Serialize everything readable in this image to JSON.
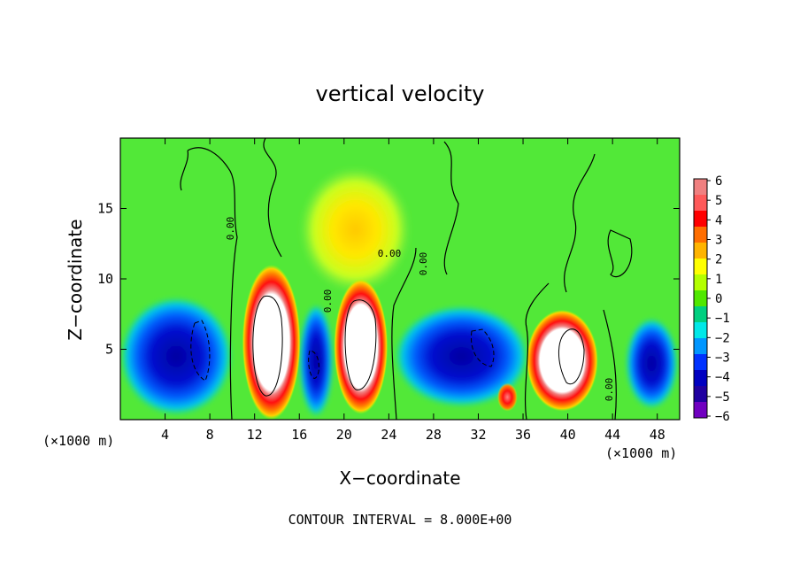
{
  "chart_data": {
    "type": "heatmap",
    "title": "vertical velocity",
    "xlabel": "X−coordinate",
    "ylabel": "Z−coordinate",
    "x_unit_note": "(×1000 m)",
    "y_unit_note": "(×1000 m)",
    "footer": "CONTOUR INTERVAL = 8.000E+00",
    "xlim": [
      0,
      50
    ],
    "ylim": [
      0,
      20
    ],
    "x_ticks": [
      4,
      8,
      12,
      16,
      20,
      24,
      28,
      32,
      36,
      40,
      44,
      48
    ],
    "y_ticks": [
      5,
      10,
      15
    ],
    "colorbar": {
      "ticks": [
        "6",
        "5",
        "4",
        "3",
        "2",
        "1",
        "0",
        "−1",
        "−2",
        "−3",
        "−4",
        "−5",
        "−6"
      ],
      "colors": [
        "#f08080",
        "#ff5a5a",
        "#ff0000",
        "#ff6e00",
        "#ffb400",
        "#ffff00",
        "#b4ff00",
        "#50e800",
        "#00d080",
        "#00e8e8",
        "#0096ff",
        "#0032ff",
        "#0000c0",
        "#2000a0",
        "#7000c0"
      ]
    },
    "contour_labels": [
      "0.00",
      "0.00",
      "0.00",
      "0.00",
      "0.00"
    ],
    "background_color": "#52e838",
    "features": [
      {
        "kind": "updraft",
        "x": 13.5,
        "z": 5.5,
        "rx": 2.6,
        "rz": 5.5
      },
      {
        "kind": "updraft",
        "x": 21.5,
        "z": 5.2,
        "rx": 2.4,
        "rz": 4.8
      },
      {
        "kind": "updraft",
        "x": 39.5,
        "z": 4.2,
        "rx": 3.2,
        "rz": 3.6
      },
      {
        "kind": "updraft",
        "x": 34.6,
        "z": 1.6,
        "rx": 0.9,
        "rz": 1.0
      },
      {
        "kind": "downdraft",
        "x": 5.0,
        "z": 4.5,
        "rx": 5.0,
        "rz": 4.2
      },
      {
        "kind": "downdraft",
        "x": 17.5,
        "z": 4.2,
        "rx": 1.5,
        "rz": 4.0
      },
      {
        "kind": "downdraft",
        "x": 30.5,
        "z": 4.5,
        "rx": 6.0,
        "rz": 3.6
      },
      {
        "kind": "downdraft",
        "x": 47.5,
        "z": 4.0,
        "rx": 2.3,
        "rz": 3.2
      },
      {
        "kind": "weak-up",
        "x": 21.0,
        "z": 13.5,
        "rx": 5.0,
        "rz": 4.5
      }
    ]
  }
}
